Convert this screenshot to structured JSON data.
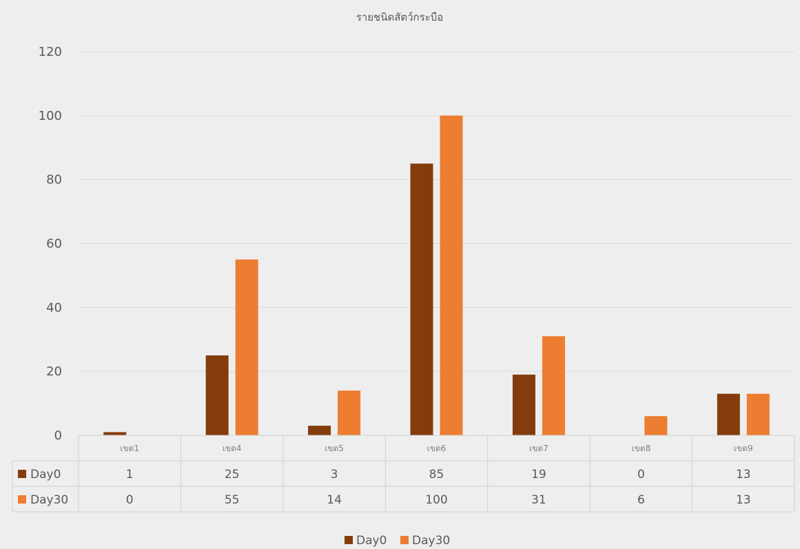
{
  "chart_data": {
    "type": "bar",
    "title": "รายชนิดสัตว์กระบือ",
    "xlabel": "",
    "ylabel": "",
    "categories": [
      "เขต1",
      "เขต4",
      "เขต5",
      "เขต6",
      "เขต7",
      "เขต8",
      "เขต9"
    ],
    "series": [
      {
        "name": "Day0",
        "color": "#843c0c",
        "values": [
          1,
          25,
          3,
          85,
          19,
          0,
          13
        ]
      },
      {
        "name": "Day30",
        "color": "#ed7d31",
        "values": [
          0,
          55,
          14,
          100,
          31,
          6,
          13
        ]
      }
    ],
    "ylim": [
      0,
      120
    ],
    "yticks": [
      0,
      20,
      40,
      60,
      80,
      100,
      120
    ],
    "grid": true,
    "legend": "bottom",
    "data_table": true
  }
}
